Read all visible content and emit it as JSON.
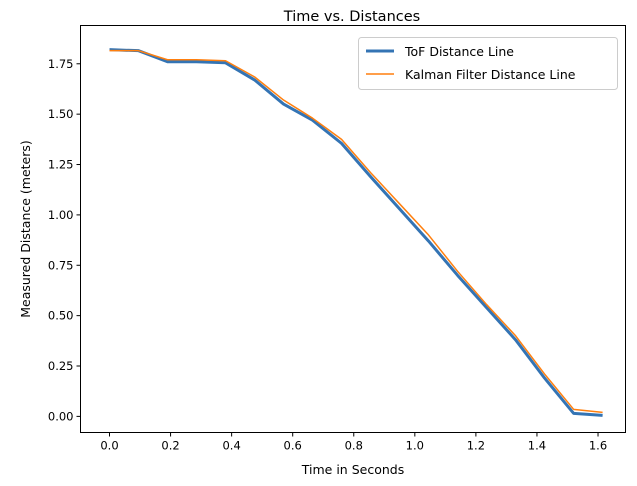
{
  "chart_data": {
    "type": "line",
    "title": "Time vs. Distances",
    "xlabel": "Time in Seconds",
    "ylabel": "Measured Distance (meters)",
    "xlim": [
      -0.095,
      1.69
    ],
    "ylim": [
      -0.08,
      1.94
    ],
    "xticks": [
      0.0,
      0.2,
      0.4,
      0.6,
      0.8,
      1.0,
      1.2,
      1.4,
      1.6
    ],
    "xtick_labels": [
      "0.0",
      "0.2",
      "0.4",
      "0.6",
      "0.8",
      "1.0",
      "1.2",
      "1.4",
      "1.6"
    ],
    "yticks": [
      0,
      0.25,
      0.5,
      0.75,
      1.0,
      1.25,
      1.5,
      1.75
    ],
    "ytick_labels": [
      "0.00",
      "0.25",
      "0.50",
      "0.75",
      "1.00",
      "1.25",
      "1.50",
      "1.75"
    ],
    "grid": false,
    "legend_position": "top-right",
    "series": [
      {
        "name": "ToF Distance Line",
        "color": "#3474b4",
        "width": 3,
        "x": [
          0.0,
          0.095,
          0.19,
          0.285,
          0.38,
          0.475,
          0.57,
          0.665,
          0.76,
          0.855,
          0.95,
          1.045,
          1.14,
          1.235,
          1.33,
          1.425,
          1.52,
          1.615
        ],
        "y": [
          1.82,
          1.815,
          1.76,
          1.76,
          1.755,
          1.67,
          1.55,
          1.47,
          1.355,
          1.19,
          1.03,
          0.87,
          0.7,
          0.54,
          0.38,
          0.19,
          0.015,
          0.005
        ]
      },
      {
        "name": "Kalman Filter Distance Line",
        "color": "#ff7f0e",
        "width": 1.5,
        "x": [
          0.0,
          0.095,
          0.19,
          0.285,
          0.38,
          0.475,
          0.57,
          0.665,
          0.76,
          0.855,
          0.95,
          1.045,
          1.14,
          1.235,
          1.33,
          1.425,
          1.52,
          1.615
        ],
        "y": [
          1.815,
          1.815,
          1.77,
          1.77,
          1.765,
          1.685,
          1.57,
          1.48,
          1.375,
          1.21,
          1.055,
          0.9,
          0.72,
          0.555,
          0.4,
          0.21,
          0.035,
          0.02
        ]
      }
    ]
  }
}
